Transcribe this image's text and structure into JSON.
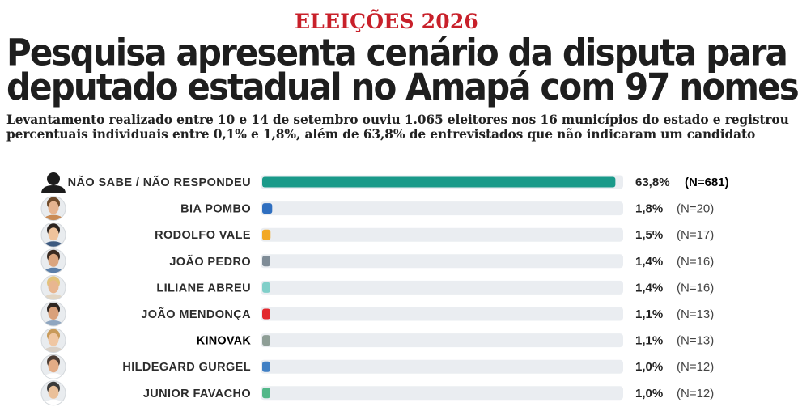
{
  "header": {
    "kicker": "ELEIÇÕES 2026",
    "title_line1": "Pesquisa apresenta cenário da disputa para",
    "title_line2": "deputado estadual no Amapá com 97 nomes",
    "subtitle_line1": "Levantamento realizado entre 10 e 14 de setembro ouviu 1.065 eleitores nos 16 municípios do estado e registrou",
    "subtitle_line2": "percentuais individuais entre 0,1% e 1,8%, além de 63,8% de entrevistados que não indicaram um candidato"
  },
  "chart_data": {
    "type": "bar",
    "orientation": "horizontal",
    "xlim": [
      0,
      65.5
    ],
    "grid": false,
    "categories": [
      "NÃO SABE / NÃO RESPONDEU",
      "BIA POMBO",
      "RODOLFO VALE",
      "JOÃO PEDRO",
      "LILIANE ABREU",
      "JOÃO MENDONÇA",
      "KINOVAK",
      "HILDEGARD GURGEL",
      "JUNIOR FAVACHO"
    ],
    "values": [
      63.8,
      1.8,
      1.5,
      1.4,
      1.4,
      1.1,
      1.1,
      1.0,
      1.0
    ],
    "value_labels": [
      "63,8%",
      "1,8%",
      "1,5%",
      "1,4%",
      "1,4%",
      "1,1%",
      "1,1%",
      "1,0%",
      "1,0%"
    ],
    "counts": [
      "(N=681)",
      "(N=20)",
      "(N=17)",
      "(N=16)",
      "(N=16)",
      "(N=13)",
      "(N=13)",
      "(N=12)",
      "(N=12)"
    ],
    "colors": [
      "#1a9a8a",
      "#2f6fc0",
      "#f2a825",
      "#7f8c97",
      "#80cfc9",
      "#e2282d",
      "#8e9e96",
      "#3f7fc4",
      "#52b788"
    ],
    "track_color": "#eaedf1",
    "avatars": [
      "silhouette-icon",
      "candidate-photo-bia-pombo",
      "candidate-photo-rodolfo-vale",
      "candidate-photo-joao-pedro",
      "candidate-photo-liliane-abreu",
      "candidate-photo-joao-mendonca",
      "candidate-photo-kinovak",
      "candidate-photo-hildegard-gurgel",
      "candidate-photo-junior-favacho"
    ]
  }
}
